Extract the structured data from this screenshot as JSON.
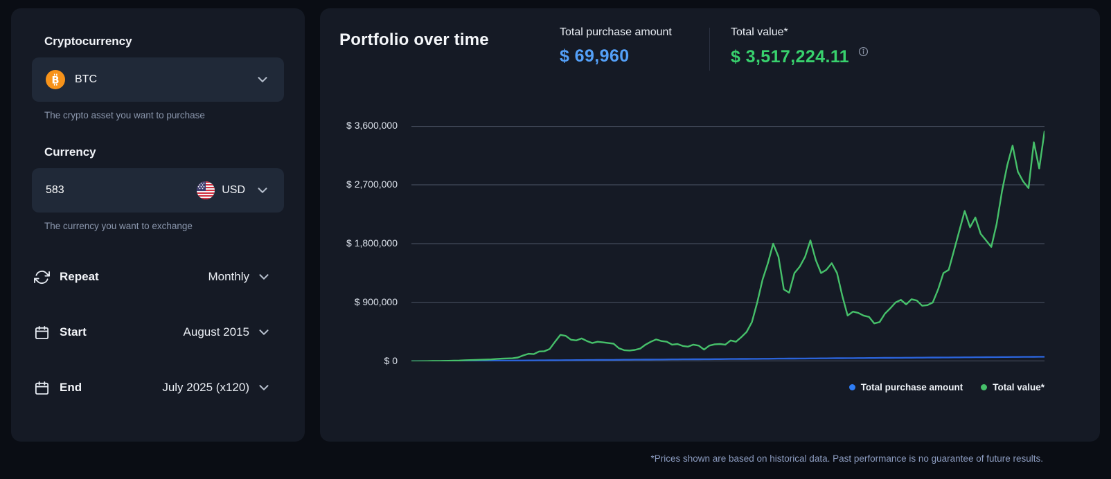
{
  "page": {
    "footnote": "*Prices shown are based on historical data. Past performance is no guarantee of future results."
  },
  "sidebar": {
    "crypto": {
      "label": "Cryptocurrency",
      "selected": "BTC",
      "helper": "The crypto asset you want to purchase",
      "icon": "bitcoin-icon",
      "icon_color": "#f7931a"
    },
    "currency": {
      "label": "Currency",
      "amount": "583",
      "selected": "USD",
      "helper": "The currency you want to exchange",
      "icon": "us-flag-icon"
    },
    "repeat": {
      "label": "Repeat",
      "value": "Monthly",
      "icon": "repeat-icon"
    },
    "start": {
      "label": "Start",
      "value": "August 2015",
      "icon": "calendar-icon"
    },
    "end": {
      "label": "End",
      "value": "July 2025 (x120)",
      "icon": "calendar-icon"
    }
  },
  "main": {
    "title": "Portfolio over time",
    "stats": [
      {
        "label": "Total purchase amount",
        "value": "$ 69,960",
        "color": "#54a0f8"
      },
      {
        "label": "Total value*",
        "value": "$ 3,517,224.11",
        "color": "#38d16d"
      }
    ],
    "legend": [
      {
        "label": "Total purchase amount",
        "color": "#2e7df6"
      },
      {
        "label": "Total value*",
        "color": "#46c06a"
      }
    ]
  },
  "chart_data": {
    "type": "line",
    "title": "Portfolio over time",
    "x_start": "August 2015",
    "x_end": "July 2025",
    "x_unit": "month",
    "months": 120,
    "ylim": [
      0,
      3600000
    ],
    "yticks": [
      0,
      900000,
      1800000,
      2700000,
      3600000
    ],
    "ytick_labels": [
      "$ 0",
      "$ 900,000",
      "$ 1,800,000",
      "$ 2,700,000",
      "$ 3,600,000"
    ],
    "grid": true,
    "grid_color": "#4d5566",
    "legend_position": "bottom-right",
    "series": [
      {
        "name": "Total purchase amount",
        "color": "#2b63d9",
        "cumulative": true,
        "monthly_contribution": 583,
        "final": 69960
      },
      {
        "name": "Total value*",
        "color": "#46c06a",
        "final": 3517224.11,
        "values": [
          600,
          1200,
          2000,
          3300,
          5000,
          5800,
          6900,
          8500,
          10500,
          12800,
          16500,
          19500,
          21500,
          24000,
          26000,
          30000,
          35500,
          41000,
          44000,
          47000,
          58000,
          90000,
          115000,
          110000,
          150000,
          155000,
          190000,
          300000,
          405000,
          390000,
          330000,
          320000,
          350000,
          310000,
          280000,
          300000,
          290000,
          280000,
          270000,
          200000,
          170000,
          165000,
          175000,
          195000,
          255000,
          300000,
          335000,
          310000,
          300000,
          255000,
          265000,
          235000,
          225000,
          255000,
          240000,
          180000,
          240000,
          260000,
          265000,
          255000,
          320000,
          300000,
          370000,
          450000,
          600000,
          900000,
          1250000,
          1500000,
          1800000,
          1600000,
          1100000,
          1050000,
          1350000,
          1450000,
          1600000,
          1850000,
          1550000,
          1350000,
          1400000,
          1500000,
          1350000,
          1000000,
          700000,
          760000,
          740000,
          700000,
          680000,
          580000,
          600000,
          730000,
          810000,
          900000,
          940000,
          870000,
          950000,
          930000,
          850000,
          860000,
          900000,
          1100000,
          1350000,
          1400000,
          1700000,
          2000000,
          2300000,
          2050000,
          2200000,
          1950000,
          1850000,
          1750000,
          2100000,
          2600000,
          3000000,
          3300000,
          2900000,
          2750000,
          2650000,
          3350000,
          2950000,
          3517224
        ]
      }
    ]
  }
}
